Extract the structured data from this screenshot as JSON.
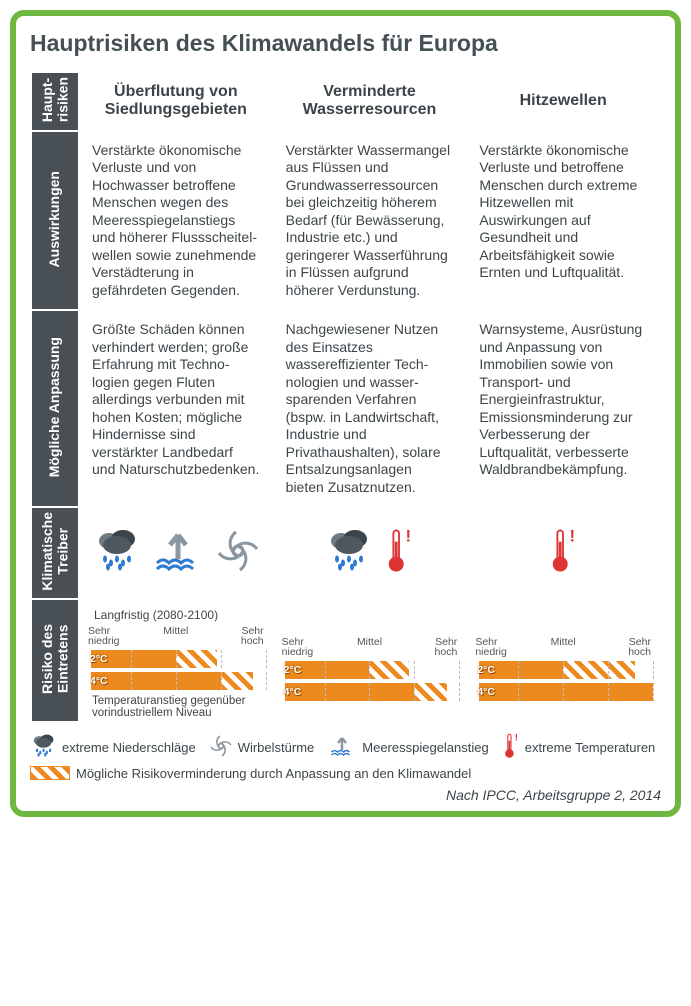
{
  "title": "Hauptrisiken des Klimawandels für Europa",
  "row_labels": {
    "r0": "Haupt-\nrisiken",
    "r1": "Auswirkungen",
    "r2": "Mögliche Anpassung",
    "r3": "Klimatische\nTreiber",
    "r4": "Risiko des\nEintretens"
  },
  "col_headers": {
    "c1": "Überflutung von Siedlungsgebieten",
    "c2": "Verminderte Wasserresourcen",
    "c3": "Hitzewellen"
  },
  "cells": {
    "auswirkungen": {
      "c1": "Verstärkte öko­nomische Verluste und von Hochwasser betroffene Menschen wegen des Meeres­spiegelanstiegs und höherer Flussscheitel­wellen sowie zuneh­mende Verstädterung in gefährdeten Gegenden.",
      "c2": "Verstärkter Wasser­mangel aus Flüssen und Grundwasser­ressourcen bei gleich­zeitig höherem Bedarf (für Bewässerung, Industrie etc.) und geringerer Wasser­führung in Flüssen aufgrund höherer Verdunstung.",
      "c3": "Verstärkte öko­nomische Verluste und betroffene Menschen durch extreme Hitzewellen mit Auswirkungen auf Gesundheit und Arbeitsfähigkeit sowie Ernten und Luftqualität."
    },
    "anpassung": {
      "c1": "Größte Schäden können verhindert werden; große Erfahrung mit Techno­logien gegen Fluten allerdings verbunden mit hohen Kosten; mögliche Hindernisse sind verstärkter Land­bedarf und Natur­schutzbedenken.",
      "c2": "Nachgewiesener Nutzen des Einsatzes wassereffizienter Tech­nologien und wasser­sparenden Verfahren (bspw. in Landwirt­schaft, Industrie und Privathaushalten), solare Entsalzungs­anlagen bieten Zusatznutzen.",
      "c3": "Warnsysteme, Ausrüstung und Anpassung von Immobilien sowie von Transport- und Energieinfrastruktur, Emissionsminderung zur Verbesserung der Luftqualität, verbesserte Wald­brandbekämpfung."
    }
  },
  "drivers": {
    "c1": [
      "rain",
      "sea",
      "storm"
    ],
    "c2": [
      "rain",
      "therm"
    ],
    "c3": [
      "therm"
    ]
  },
  "risk": {
    "timescale_label": "Langfristig (2080-2100)",
    "axis": {
      "low": "Sehr\nniedrig",
      "mid": "Mittel",
      "high": "Sehr\nhoch"
    },
    "temp_labels": {
      "a": "2°C",
      "b": "4°C"
    },
    "footnote": "Temperaturanstieg gegenüber vorindustriellem Niveau",
    "bars": {
      "c1": {
        "t2_solid_start": 3,
        "t2_solid_end": 50,
        "t2_hatch_end": 73,
        "t4_solid_start": 3,
        "t4_solid_end": 75,
        "t4_hatch_end": 93
      },
      "c2": {
        "t2_solid_start": 3,
        "t2_solid_end": 50,
        "t2_hatch_end": 72,
        "t4_solid_start": 3,
        "t4_solid_end": 75,
        "t4_hatch_end": 93
      },
      "c3": {
        "t2_solid_start": 3,
        "t2_solid_end": 50,
        "t2_hatch_end": 90,
        "t4_solid_start": 3,
        "t4_solid_end": 100,
        "t4_hatch_end": 100
      }
    },
    "colors": {
      "solid": "#ec8a1f",
      "hatch_fg": "#ec8a1f",
      "hatch_bg": "#ffffff"
    }
  },
  "legend": {
    "rain": "extreme Niederschläge",
    "storm": "Wirbelstürme",
    "sea": "Meeresspiegelanstieg",
    "therm": "extreme Temperaturen",
    "hatch": "Mögliche Risikoverminderung durch Anpassung an den Klimawandel"
  },
  "credit": "Nach IPCC, Arbeitsgruppe 2, 2014",
  "colors": {
    "frame": "#6fb83f",
    "header_bg": "#485055",
    "text": "#3d4549"
  }
}
